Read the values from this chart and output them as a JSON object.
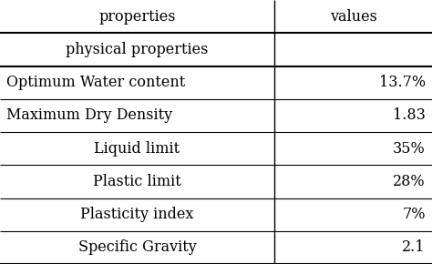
{
  "col_headers": [
    "properties",
    "values"
  ],
  "subheader": [
    "physical properties",
    ""
  ],
  "rows": [
    [
      "Optimum Water content",
      "13.7%"
    ],
    [
      "Maximum Dry Density",
      "1.83"
    ],
    [
      "Liquid limit",
      "35%"
    ],
    [
      "Plastic limit",
      "28%"
    ],
    [
      "Plasticity index",
      "7%"
    ],
    [
      "Specific Gravity",
      "2.1"
    ]
  ],
  "col_split": 0.635,
  "font_size": 11.5,
  "bg_color": "#ffffff",
  "text_color": "#000000",
  "line_color": "#000000",
  "fig_width": 4.74,
  "fig_height": 2.9,
  "dpi": 100
}
